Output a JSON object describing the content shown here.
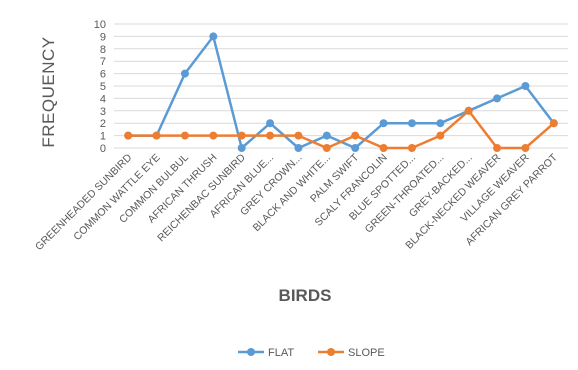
{
  "chart_data": {
    "type": "line",
    "title": "",
    "xlabel": "BIRDS",
    "ylabel": "FREQUENCY",
    "ylim": [
      0,
      10
    ],
    "yticks": [
      0,
      1,
      2,
      3,
      4,
      5,
      6,
      7,
      8,
      9,
      10
    ],
    "grid": true,
    "legend_position": "bottom",
    "categories": [
      "GREENHEADED SUNBIRD",
      "COMMON WATTLE EYE",
      "COMMON BULBUL",
      "AFRICAN THRUSH",
      "REICHENBAC SUNBIRD",
      "AFRICAN BLUE...",
      "GREY CROWN...",
      "BLACK AND WHITE...",
      "PALM SWIFT",
      "SCALY FRANCOLIN",
      "BLUE SPOTTED...",
      "GREEN-THROATED...",
      "GREY-BACKED...",
      "BLACK-NECKED WEAVER",
      "VILLAGE WEAVER",
      "AFRICAN GREY PARROT"
    ],
    "series": [
      {
        "name": "FLAT",
        "color": "#5B9BD5",
        "values": [
          1,
          1,
          6,
          9,
          0,
          2,
          0,
          1,
          0,
          2,
          2,
          2,
          3,
          4,
          5,
          2
        ]
      },
      {
        "name": "SLOPE",
        "color": "#ED7D31",
        "values": [
          1,
          1,
          1,
          1,
          1,
          1,
          1,
          0,
          1,
          0,
          0,
          1,
          3,
          0,
          0,
          2
        ]
      }
    ]
  }
}
